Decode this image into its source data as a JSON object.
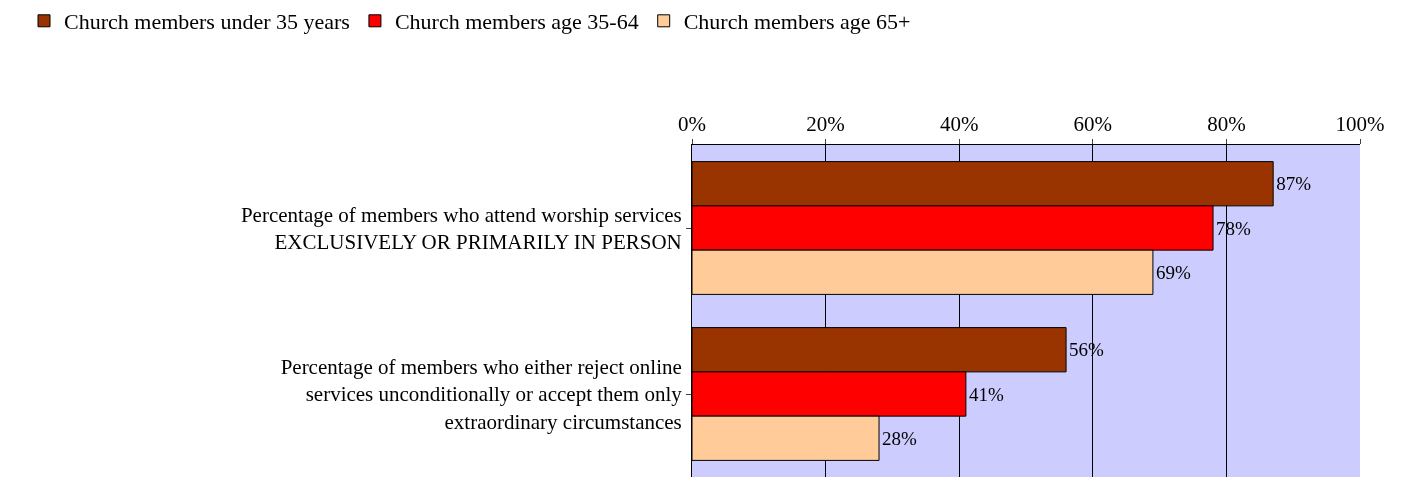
{
  "chart_data": {
    "type": "bar",
    "orientation": "horizontal",
    "categories": [
      "Percentage of members who attend worship services\nEXCLUSIVELY OR PRIMARILY IN PERSON",
      "Percentage of members who either reject online\nservices unconditionally or accept them only\nextraordinary circumstances"
    ],
    "series": [
      {
        "name": "Church members under 35 years",
        "color": "#993300",
        "values": [
          87,
          56
        ],
        "value_labels": [
          "87%",
          "56%"
        ]
      },
      {
        "name": "Church members age 35-64",
        "color": "#ff0000",
        "values": [
          78,
          41
        ],
        "value_labels": [
          "78%",
          "41%"
        ]
      },
      {
        "name": "Church members age 65+",
        "color": "#ffcc99",
        "values": [
          69,
          28
        ],
        "value_labels": [
          "69%",
          "28%"
        ]
      }
    ],
    "xlim": [
      0,
      100
    ],
    "xticks": [
      {
        "value": 0,
        "label": "0%"
      },
      {
        "value": 20,
        "label": "20%"
      },
      {
        "value": 40,
        "label": "40%"
      },
      {
        "value": 60,
        "label": "60%"
      },
      {
        "value": 80,
        "label": "80%"
      },
      {
        "value": 100,
        "label": "100%"
      }
    ],
    "grid": "x",
    "legend": "top"
  }
}
